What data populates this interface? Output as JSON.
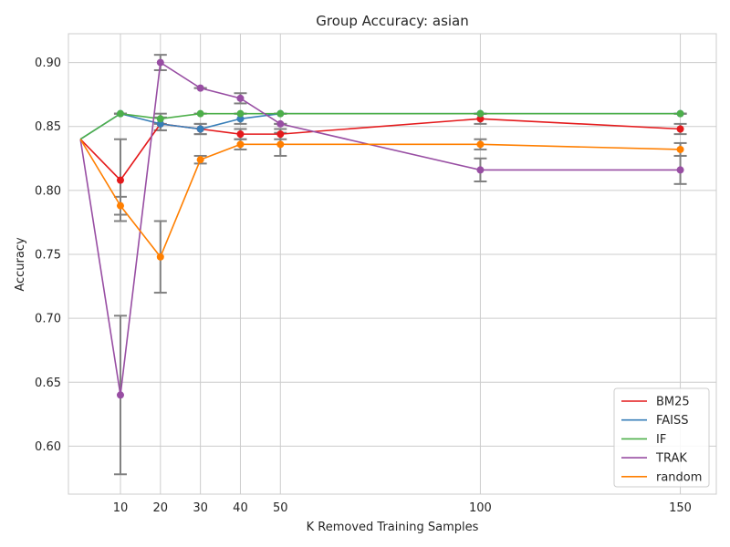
{
  "chart_data": {
    "type": "line",
    "title": "Group Accuracy: asian",
    "xlabel": "K Removed Training Samples",
    "ylabel": "Accuracy",
    "xlim": [
      -3,
      159
    ],
    "ylim": [
      0.5625,
      0.9225
    ],
    "xticks": [
      10,
      20,
      30,
      40,
      50,
      100,
      150
    ],
    "yticks": [
      0.6,
      0.65,
      0.7,
      0.75,
      0.8,
      0.85,
      0.9
    ],
    "grid": true,
    "legend_position": "lower-right",
    "errorbar_color": "#808080",
    "series": [
      {
        "name": "BM25",
        "color": "#e41a1c",
        "points": [
          {
            "x": 0,
            "y": 0.84
          },
          {
            "x": 10,
            "y": 0.808,
            "err": 0.032
          },
          {
            "x": 20,
            "y": 0.852,
            "err": 0.005
          },
          {
            "x": 30,
            "y": 0.848,
            "err": 0.004
          },
          {
            "x": 40,
            "y": 0.844,
            "err": 0.004
          },
          {
            "x": 50,
            "y": 0.844,
            "err": 0.004
          },
          {
            "x": 100,
            "y": 0.856,
            "err": 0.004
          },
          {
            "x": 150,
            "y": 0.848,
            "err": 0.004
          }
        ]
      },
      {
        "name": "FAISS",
        "color": "#377eb8",
        "points": [
          {
            "x": 0,
            "y": 0.84
          },
          {
            "x": 10,
            "y": 0.86,
            "err": 0.0
          },
          {
            "x": 20,
            "y": 0.852,
            "err": 0.005
          },
          {
            "x": 30,
            "y": 0.848,
            "err": 0.004
          },
          {
            "x": 40,
            "y": 0.856,
            "err": 0.004
          },
          {
            "x": 50,
            "y": 0.86,
            "err": 0.0
          },
          {
            "x": 100,
            "y": 0.86,
            "err": 0.0
          },
          {
            "x": 150,
            "y": 0.86,
            "err": 0.0
          }
        ]
      },
      {
        "name": "IF",
        "color": "#4daf4a",
        "points": [
          {
            "x": 0,
            "y": 0.84
          },
          {
            "x": 10,
            "y": 0.86,
            "err": 0.0
          },
          {
            "x": 20,
            "y": 0.856,
            "err": 0.004
          },
          {
            "x": 30,
            "y": 0.86,
            "err": 0.0
          },
          {
            "x": 40,
            "y": 0.86,
            "err": 0.0
          },
          {
            "x": 50,
            "y": 0.86,
            "err": 0.0
          },
          {
            "x": 100,
            "y": 0.86,
            "err": 0.0
          },
          {
            "x": 150,
            "y": 0.86,
            "err": 0.0
          }
        ]
      },
      {
        "name": "TRAK",
        "color": "#984ea3",
        "points": [
          {
            "x": 0,
            "y": 0.84
          },
          {
            "x": 10,
            "y": 0.64,
            "err": 0.062
          },
          {
            "x": 20,
            "y": 0.9,
            "err": 0.006
          },
          {
            "x": 30,
            "y": 0.88,
            "err": 0.0
          },
          {
            "x": 40,
            "y": 0.872,
            "err": 0.004
          },
          {
            "x": 50,
            "y": 0.852,
            "err": 0.0
          },
          {
            "x": 100,
            "y": 0.816,
            "err": 0.009
          },
          {
            "x": 150,
            "y": 0.816,
            "err": 0.011
          }
        ]
      },
      {
        "name": "random",
        "color": "#ff7f00",
        "points": [
          {
            "x": 0,
            "y": 0.84
          },
          {
            "x": 10,
            "y": 0.788,
            "err": 0.007
          },
          {
            "x": 20,
            "y": 0.748,
            "err": 0.028
          },
          {
            "x": 30,
            "y": 0.824,
            "err": 0.003
          },
          {
            "x": 40,
            "y": 0.836,
            "err": 0.004
          },
          {
            "x": 50,
            "y": 0.836,
            "err": 0.009
          },
          {
            "x": 100,
            "y": 0.836,
            "err": 0.004
          },
          {
            "x": 150,
            "y": 0.832,
            "err": 0.005
          }
        ]
      }
    ]
  }
}
